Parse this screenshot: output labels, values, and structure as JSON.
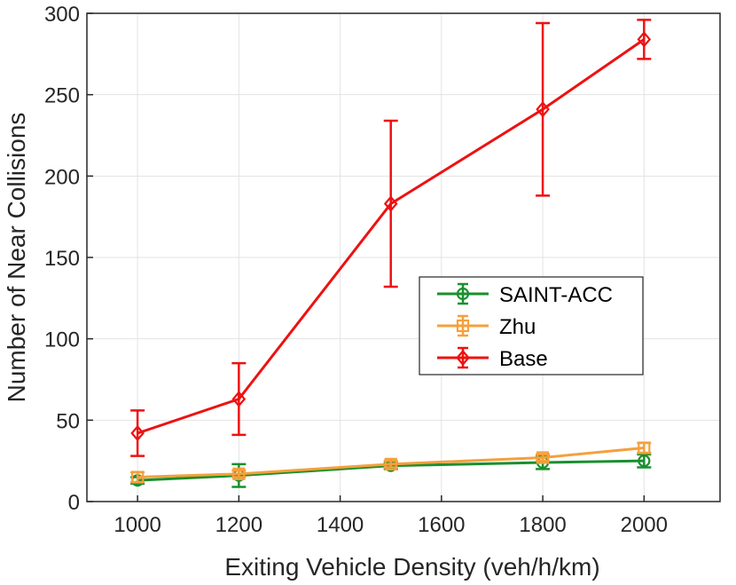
{
  "chart_data": {
    "type": "line",
    "title": "",
    "xlabel": "Exiting Vehicle Density (veh/h/km)",
    "ylabel": "Number of Near Collisions",
    "xlim": [
      900,
      2150
    ],
    "ylim": [
      0,
      300
    ],
    "xticks": [
      1000,
      1200,
      1400,
      1600,
      1800,
      2000
    ],
    "yticks": [
      0,
      50,
      100,
      150,
      200,
      250,
      300
    ],
    "grid": true,
    "legend_position": "center-right",
    "series": [
      {
        "name": "SAINT-ACC",
        "color": "#1a8f2e",
        "marker": "circle",
        "x": [
          1000,
          1200,
          1500,
          1800,
          2000
        ],
        "y": [
          13,
          16,
          22,
          24,
          25
        ],
        "err_low": [
          2,
          7,
          2,
          4,
          4
        ],
        "err_high": [
          2,
          7,
          2,
          4,
          4
        ]
      },
      {
        "name": "Zhu",
        "color": "#f5a03c",
        "marker": "square",
        "x": [
          1000,
          1200,
          1500,
          1800,
          2000
        ],
        "y": [
          15,
          17,
          23,
          27,
          33
        ],
        "err_low": [
          3,
          2,
          2,
          2,
          3
        ],
        "err_high": [
          3,
          2,
          2,
          2,
          3
        ]
      },
      {
        "name": "Base",
        "color": "#ee1111",
        "marker": "diamond",
        "x": [
          1000,
          1200,
          1500,
          1800,
          2000
        ],
        "y": [
          42,
          63,
          183,
          241,
          284
        ],
        "err_low": [
          14,
          22,
          51,
          53,
          12
        ],
        "err_high": [
          14,
          22,
          51,
          53,
          12
        ]
      }
    ]
  }
}
